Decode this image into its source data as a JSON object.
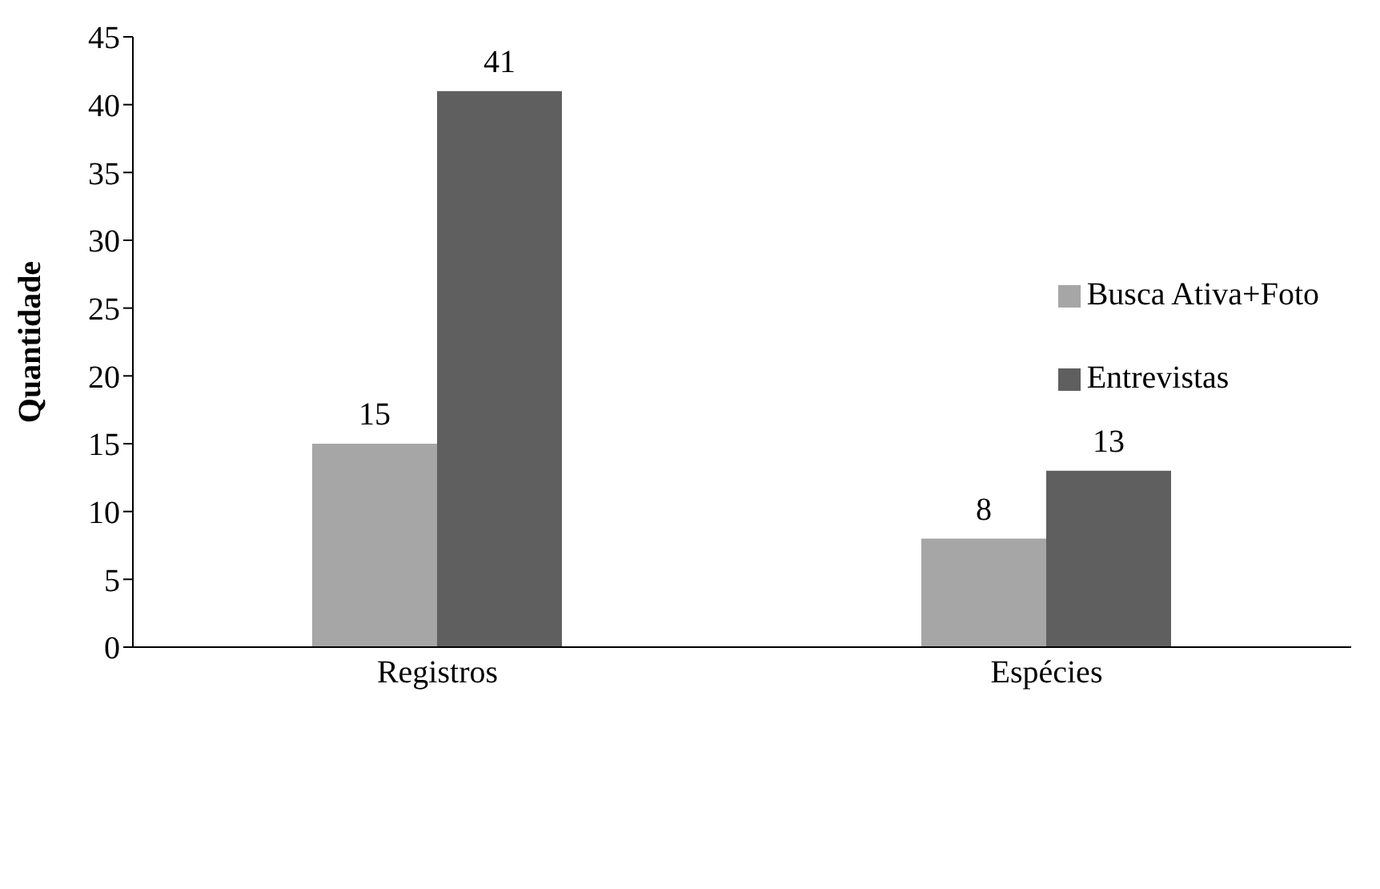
{
  "chart_data": {
    "type": "bar",
    "ylabel": "Quantidade",
    "categories": [
      "Registros",
      "Espécies"
    ],
    "series": [
      {
        "name": "Busca Ativa+Foto",
        "color": "#a6a6a6",
        "values": [
          15,
          8
        ]
      },
      {
        "name": "Entrevistas",
        "color": "#5f5f5f",
        "values": [
          41,
          13
        ]
      }
    ],
    "ylim": [
      0,
      45
    ],
    "yticks": [
      0,
      5,
      10,
      15,
      20,
      25,
      30,
      35,
      40,
      45
    ],
    "grid": false,
    "legend": "right",
    "data_labels": true
  }
}
